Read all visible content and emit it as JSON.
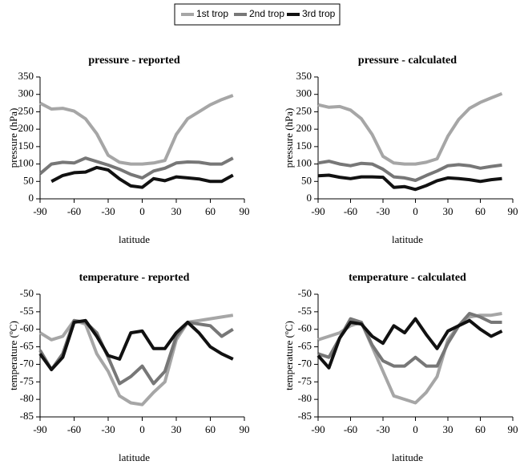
{
  "chart_data": [
    {
      "type": "line",
      "title": "pressure - reported",
      "x_label": "latitude",
      "y_label": "pressure (hPa)",
      "x": [
        -90,
        -80,
        -70,
        -60,
        -50,
        -40,
        -30,
        -20,
        -10,
        0,
        10,
        20,
        30,
        40,
        50,
        60,
        70,
        80
      ],
      "xlim": [
        -90,
        90
      ],
      "xticks": [
        -90,
        -60,
        -30,
        0,
        30,
        60,
        90
      ],
      "ylim": [
        0,
        350
      ],
      "yticks": [
        0,
        50,
        100,
        150,
        200,
        250,
        300,
        350
      ],
      "series": [
        {
          "name": "1st trop",
          "color": "#a6a6a6",
          "values": [
            275,
            258,
            260,
            252,
            230,
            187,
            125,
            105,
            100,
            100,
            103,
            110,
            185,
            230,
            250,
            270,
            285,
            297
          ]
        },
        {
          "name": "2nd trop",
          "color": "#777777",
          "values": [
            72,
            100,
            105,
            103,
            117,
            107,
            97,
            85,
            70,
            60,
            80,
            88,
            103,
            106,
            105,
            100,
            100,
            117
          ]
        },
        {
          "name": "3rd trop",
          "color": "#111111",
          "values": [
            null,
            50,
            67,
            75,
            77,
            90,
            83,
            57,
            37,
            33,
            58,
            52,
            63,
            60,
            57,
            50,
            50,
            68
          ]
        }
      ]
    },
    {
      "type": "line",
      "title": "pressure - calculated",
      "x_label": "latitude",
      "y_label": "pressure (hPa)",
      "x": [
        -90,
        -80,
        -70,
        -60,
        -50,
        -40,
        -30,
        -20,
        -10,
        0,
        10,
        20,
        30,
        40,
        50,
        60,
        70,
        80
      ],
      "xlim": [
        -90,
        90
      ],
      "xticks": [
        -90,
        -60,
        -30,
        0,
        30,
        60,
        90
      ],
      "ylim": [
        0,
        350
      ],
      "yticks": [
        0,
        50,
        100,
        150,
        200,
        250,
        300,
        350
      ],
      "series": [
        {
          "name": "1st trop",
          "color": "#a6a6a6",
          "values": [
            270,
            263,
            265,
            255,
            230,
            185,
            122,
            103,
            100,
            100,
            105,
            115,
            180,
            228,
            260,
            277,
            290,
            302
          ]
        },
        {
          "name": "2nd trop",
          "color": "#777777",
          "values": [
            103,
            108,
            100,
            95,
            102,
            100,
            85,
            63,
            60,
            53,
            67,
            80,
            95,
            98,
            95,
            88,
            93,
            97
          ]
        },
        {
          "name": "3rd trop",
          "color": "#111111",
          "values": [
            66,
            68,
            62,
            58,
            63,
            63,
            62,
            33,
            35,
            27,
            38,
            52,
            60,
            58,
            55,
            50,
            55,
            58
          ]
        }
      ]
    },
    {
      "type": "line",
      "title": "temperature - reported",
      "x_label": "latitude",
      "y_label": "temperature (ºC)",
      "x": [
        -90,
        -80,
        -70,
        -60,
        -50,
        -40,
        -30,
        -20,
        -10,
        0,
        10,
        20,
        30,
        40,
        50,
        60,
        70,
        80
      ],
      "xlim": [
        -90,
        90
      ],
      "xticks": [
        -90,
        -60,
        -30,
        0,
        30,
        60,
        90
      ],
      "ylim": [
        -85,
        -50
      ],
      "yticks": [
        -85,
        -80,
        -75,
        -70,
        -65,
        -60,
        -55,
        -50
      ],
      "series": [
        {
          "name": "1st trop",
          "color": "#a6a6a6",
          "values": [
            -61,
            -63,
            -62,
            -57.5,
            -58.5,
            -67,
            -72,
            -79,
            -81,
            -81.5,
            -78,
            -75,
            -63,
            -58,
            -57.5,
            -57,
            -56.5,
            -56
          ]
        },
        {
          "name": "2nd trop",
          "color": "#777777",
          "values": [
            -66,
            -71.5,
            -67,
            -57.5,
            -58,
            -61,
            -68,
            -75.5,
            -73.5,
            -70.5,
            -75.5,
            -72,
            -62,
            -58,
            -58.5,
            -59,
            -62,
            -60
          ]
        },
        {
          "name": "3rd trop",
          "color": "#111111",
          "values": [
            -67,
            -71.5,
            -68,
            -58,
            -57.5,
            -62,
            -67.5,
            -68.5,
            -61,
            -60.5,
            -65.5,
            -65.5,
            -61,
            -58,
            -61,
            -65,
            -67,
            -68.5
          ]
        }
      ]
    },
    {
      "type": "line",
      "title": "temperature - calculated",
      "x_label": "latitude",
      "y_label": "temperature (ºC)",
      "x": [
        -90,
        -80,
        -70,
        -60,
        -50,
        -40,
        -30,
        -20,
        -10,
        0,
        10,
        20,
        30,
        40,
        50,
        60,
        70,
        80
      ],
      "xlim": [
        -90,
        90
      ],
      "xticks": [
        -90,
        -60,
        -30,
        0,
        30,
        60,
        90
      ],
      "ylim": [
        -85,
        -50
      ],
      "yticks": [
        -85,
        -80,
        -75,
        -70,
        -65,
        -60,
        -55,
        -50
      ],
      "series": [
        {
          "name": "1st trop",
          "color": "#a6a6a6",
          "values": [
            -63,
            -62,
            -61,
            -59,
            -58,
            -65,
            -72,
            -79,
            -80,
            -81,
            -78,
            -73.5,
            -63,
            -59,
            -56.5,
            -56,
            -56,
            -55.5
          ]
        },
        {
          "name": "2nd trop",
          "color": "#777777",
          "values": [
            -67,
            -68,
            -62.5,
            -57,
            -58,
            -64.5,
            -69,
            -70.5,
            -70.5,
            -68,
            -70.5,
            -70.5,
            -64,
            -59,
            -55.5,
            -56.5,
            -58,
            -58
          ]
        },
        {
          "name": "3rd trop",
          "color": "#111111",
          "values": [
            -67.5,
            -71,
            -62.5,
            -58,
            -58.5,
            -62,
            -64,
            -59,
            -61,
            -57,
            -61.5,
            -65.5,
            -60.5,
            -59,
            -57.5,
            -60,
            -62,
            -60.5
          ]
        }
      ]
    }
  ]
}
